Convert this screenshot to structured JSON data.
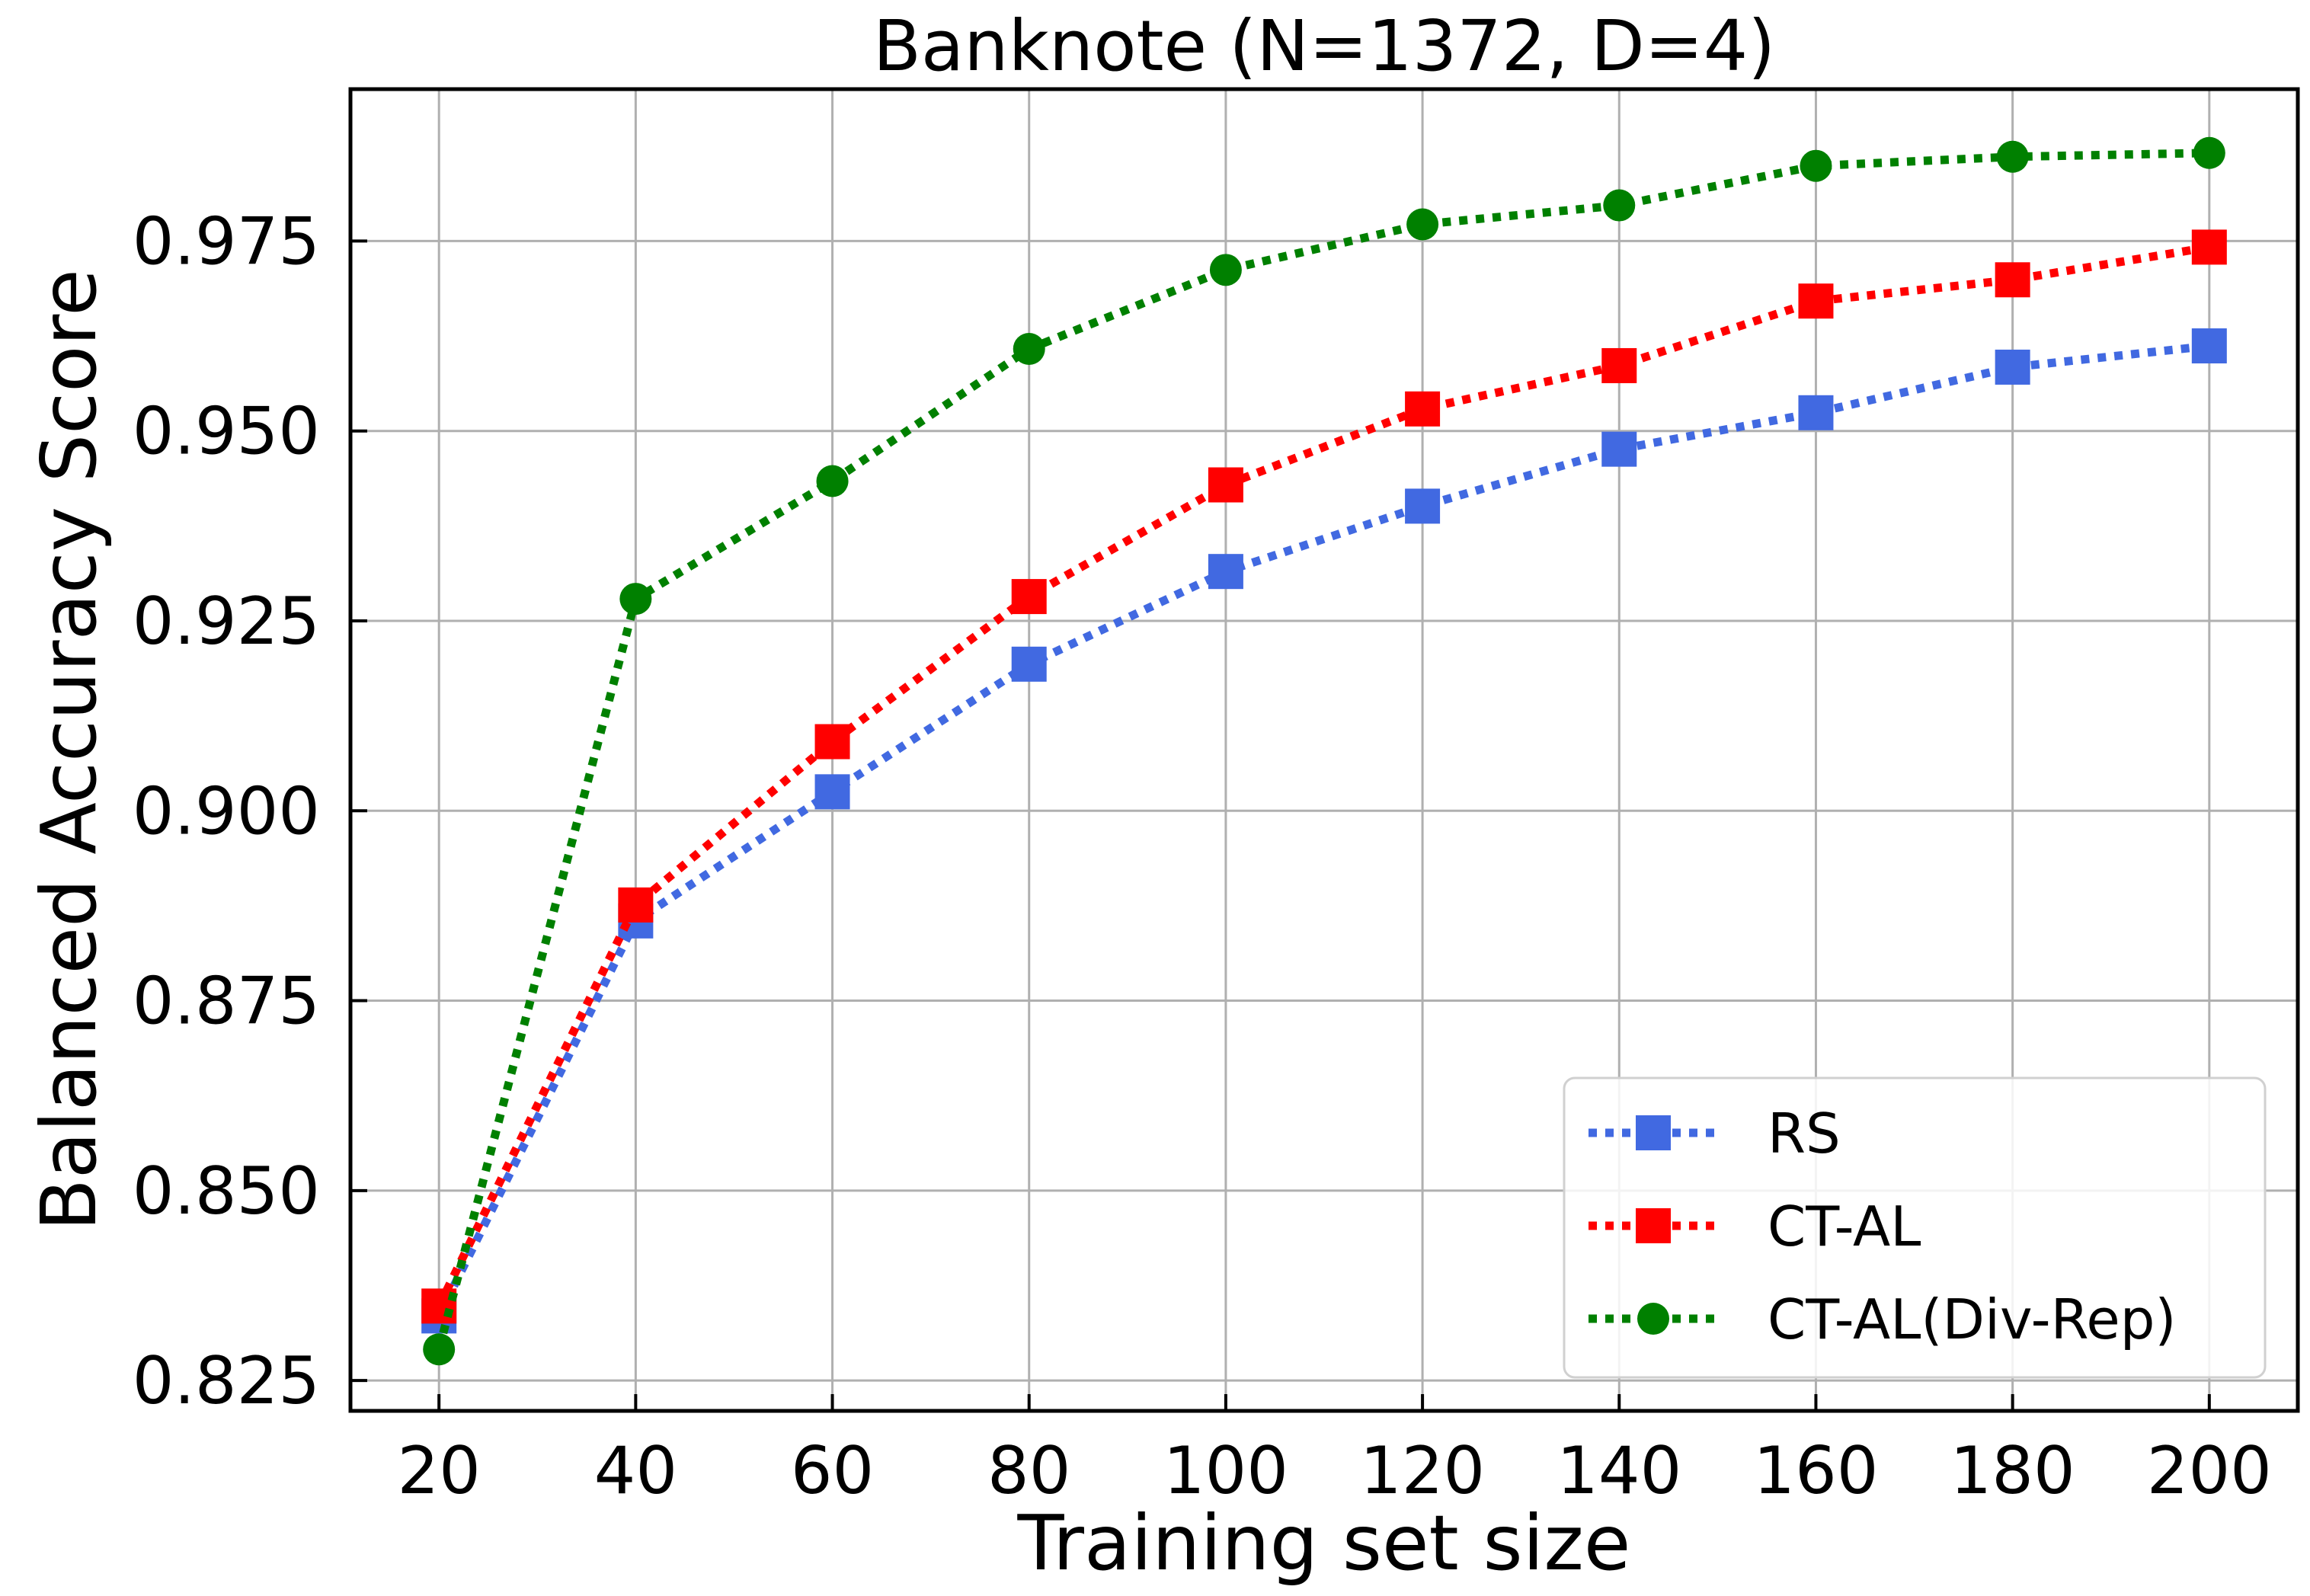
{
  "chart_data": {
    "type": "line",
    "title": "Banknote (N=1372, D=4)",
    "xlabel": "Training set size",
    "ylabel": "Balanced Accuracy Score",
    "x": [
      20,
      40,
      60,
      80,
      100,
      120,
      140,
      160,
      180,
      200
    ],
    "xticks": [
      "20",
      "40",
      "60",
      "80",
      "100",
      "120",
      "140",
      "160",
      "180",
      "200"
    ],
    "yticks": [
      "0.825",
      "0.850",
      "0.875",
      "0.900",
      "0.925",
      "0.950",
      "0.975"
    ],
    "ytick_values": [
      0.825,
      0.85,
      0.875,
      0.9,
      0.925,
      0.95,
      0.975
    ],
    "xlim": [
      11,
      209
    ],
    "ylim": [
      0.821,
      0.995
    ],
    "grid": true,
    "legend_position": "bottom-right",
    "series": [
      {
        "name": "RS",
        "color": "#4169e1",
        "marker": "square",
        "linestyle": "dotted",
        "values": [
          0.8335,
          0.8855,
          0.9025,
          0.9193,
          0.9315,
          0.9401,
          0.9476,
          0.9524,
          0.9584,
          0.9612
        ]
      },
      {
        "name": "CT-AL",
        "color": "#ff0000",
        "marker": "square",
        "linestyle": "dotted",
        "values": [
          0.8348,
          0.8876,
          0.9091,
          0.9282,
          0.9429,
          0.9529,
          0.9586,
          0.9671,
          0.9699,
          0.9742
        ]
      },
      {
        "name": "CT-AL(Div-Rep)",
        "color": "#008000",
        "marker": "circle",
        "linestyle": "dotted",
        "values": [
          0.8291,
          0.9279,
          0.9434,
          0.9608,
          0.9712,
          0.9772,
          0.9797,
          0.9849,
          0.9861,
          0.9866
        ]
      }
    ]
  }
}
